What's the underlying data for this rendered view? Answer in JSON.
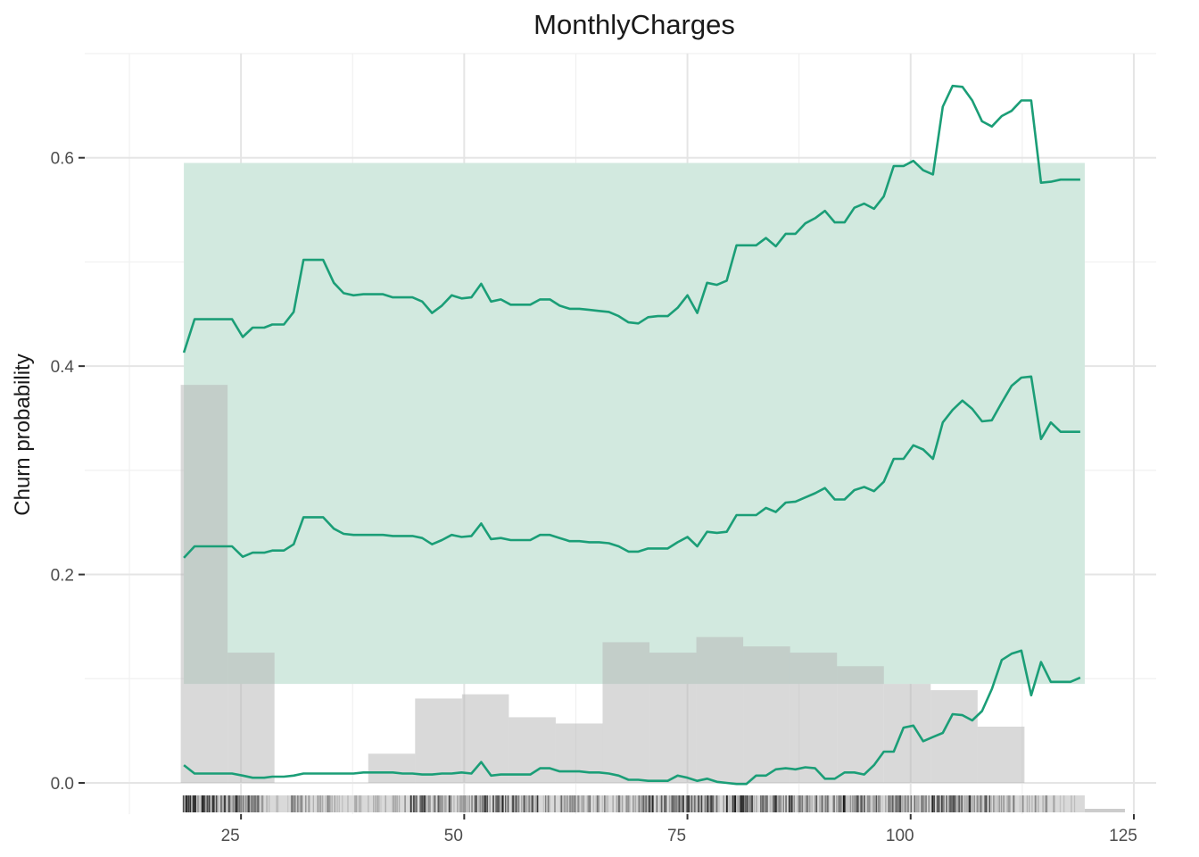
{
  "chart_data": {
    "type": "line",
    "title": "MonthlyCharges",
    "xlabel": "",
    "ylabel": "Churn probability",
    "xlim": [
      7.5,
      127.5
    ],
    "ylim": [
      -0.03,
      0.7
    ],
    "x_ticks": [
      25,
      50,
      75,
      100,
      125
    ],
    "x_tick_labels": [
      "25",
      "50",
      "75",
      "100",
      "125"
    ],
    "y_ticks": [
      0.0,
      0.2,
      0.4,
      0.6
    ],
    "y_tick_labels": [
      "0.0",
      "0.2",
      "0.4",
      "0.6"
    ],
    "grid": true,
    "colors": {
      "line": "#1b9e77",
      "band": "#d2e9df",
      "histogram": "#b3b3b3",
      "rug": "#000000",
      "grid_major": "#e5e5e5",
      "grid_minor": "#f0f0f0"
    },
    "series": [
      {
        "x": [
          18.6,
          19.8,
          22.5,
          24.0,
          25.2,
          26.3,
          27.6,
          28.5,
          29.8,
          30.9,
          32.0,
          33.1,
          34.2,
          35.4,
          36.5,
          37.6,
          38.7,
          39.8,
          40.9,
          42.0,
          43.1,
          44.2,
          45.3,
          46.4,
          47.5,
          48.6,
          49.7,
          50.8,
          51.9,
          53.0,
          54.1,
          55.2,
          56.3,
          57.4,
          58.5,
          59.6,
          60.7,
          61.8,
          62.9,
          64.0,
          65.1,
          66.2,
          67.3,
          68.4,
          69.5,
          70.6,
          71.7,
          72.8,
          73.9,
          75.0,
          76.1,
          77.2,
          78.3,
          79.4,
          80.5,
          81.6,
          82.7,
          83.8,
          84.9,
          86.0,
          87.1,
          88.2,
          89.3,
          90.4,
          91.5,
          92.6,
          93.7,
          94.8,
          95.9,
          97.0,
          98.1,
          99.2,
          100.3,
          101.4,
          102.5,
          103.6,
          104.7,
          105.8,
          106.9,
          108.0,
          109.1,
          110.2,
          111.3,
          112.4,
          113.5,
          114.6,
          115.7,
          116.8,
          117.9,
          119.0
        ],
        "y": [
          0.413,
          0.445,
          0.445,
          0.445,
          0.428,
          0.437,
          0.437,
          0.44,
          0.44,
          0.452,
          0.502,
          0.502,
          0.502,
          0.48,
          0.47,
          0.468,
          0.469,
          0.469,
          0.469,
          0.466,
          0.466,
          0.466,
          0.462,
          0.451,
          0.458,
          0.468,
          0.465,
          0.466,
          0.479,
          0.462,
          0.464,
          0.459,
          0.459,
          0.459,
          0.464,
          0.464,
          0.458,
          0.455,
          0.455,
          0.454,
          0.453,
          0.452,
          0.448,
          0.442,
          0.441,
          0.447,
          0.448,
          0.448,
          0.456,
          0.468,
          0.451,
          0.48,
          0.478,
          0.482,
          0.516,
          0.516,
          0.516,
          0.523,
          0.515,
          0.527,
          0.527,
          0.537,
          0.542,
          0.549,
          0.538,
          0.538,
          0.552,
          0.556,
          0.551,
          0.563,
          0.592,
          0.592,
          0.597,
          0.588,
          0.584,
          0.649,
          0.669,
          0.668,
          0.655,
          0.635,
          0.63,
          0.64,
          0.645,
          0.655,
          0.655,
          0.576,
          0.577,
          0.579,
          0.579,
          0.579
        ]
      },
      {
        "x": [
          18.6,
          19.8,
          22.5,
          24.0,
          25.2,
          26.3,
          27.6,
          28.5,
          29.8,
          30.9,
          32.0,
          33.1,
          34.2,
          35.4,
          36.5,
          37.6,
          38.7,
          39.8,
          40.9,
          42.0,
          43.1,
          44.2,
          45.3,
          46.4,
          47.5,
          48.6,
          49.7,
          50.8,
          51.9,
          53.0,
          54.1,
          55.2,
          56.3,
          57.4,
          58.5,
          59.6,
          60.7,
          61.8,
          62.9,
          64.0,
          65.1,
          66.2,
          67.3,
          68.4,
          69.5,
          70.6,
          71.7,
          72.8,
          73.9,
          75.0,
          76.1,
          77.2,
          78.3,
          79.4,
          80.5,
          81.6,
          82.7,
          83.8,
          84.9,
          86.0,
          87.1,
          88.2,
          89.3,
          90.4,
          91.5,
          92.6,
          93.7,
          94.8,
          95.9,
          97.0,
          98.1,
          99.2,
          100.3,
          101.4,
          102.5,
          103.6,
          104.7,
          105.8,
          106.9,
          108.0,
          109.1,
          110.2,
          111.3,
          112.4,
          113.5,
          114.6,
          115.7,
          116.8,
          117.9,
          119.0
        ],
        "y": [
          0.216,
          0.227,
          0.227,
          0.227,
          0.217,
          0.221,
          0.221,
          0.223,
          0.223,
          0.229,
          0.255,
          0.255,
          0.255,
          0.244,
          0.239,
          0.238,
          0.238,
          0.238,
          0.238,
          0.237,
          0.237,
          0.237,
          0.235,
          0.229,
          0.233,
          0.238,
          0.236,
          0.237,
          0.249,
          0.234,
          0.235,
          0.233,
          0.233,
          0.233,
          0.238,
          0.238,
          0.235,
          0.232,
          0.232,
          0.231,
          0.231,
          0.23,
          0.227,
          0.222,
          0.222,
          0.225,
          0.225,
          0.225,
          0.231,
          0.236,
          0.227,
          0.241,
          0.24,
          0.241,
          0.257,
          0.257,
          0.257,
          0.264,
          0.26,
          0.269,
          0.27,
          0.274,
          0.278,
          0.283,
          0.272,
          0.272,
          0.281,
          0.284,
          0.28,
          0.289,
          0.311,
          0.311,
          0.324,
          0.32,
          0.311,
          0.346,
          0.358,
          0.367,
          0.359,
          0.347,
          0.348,
          0.365,
          0.381,
          0.389,
          0.39,
          0.33,
          0.346,
          0.337,
          0.337,
          0.337
        ]
      },
      {
        "x": [
          18.6,
          19.8,
          22.5,
          24.0,
          25.2,
          26.3,
          27.6,
          28.5,
          29.8,
          30.9,
          32.0,
          33.1,
          34.2,
          35.4,
          36.5,
          37.6,
          38.7,
          39.8,
          40.9,
          42.0,
          43.1,
          44.2,
          45.3,
          46.4,
          47.5,
          48.6,
          49.7,
          50.8,
          51.9,
          53.0,
          54.1,
          55.2,
          56.3,
          57.4,
          58.5,
          59.6,
          60.7,
          61.8,
          62.9,
          64.0,
          65.1,
          66.2,
          67.3,
          68.4,
          69.5,
          70.6,
          71.7,
          72.8,
          73.9,
          75.0,
          76.1,
          77.2,
          78.3,
          79.4,
          80.5,
          81.6,
          82.7,
          83.8,
          84.9,
          86.0,
          87.1,
          88.2,
          89.3,
          90.4,
          91.5,
          92.6,
          93.7,
          94.8,
          95.9,
          97.0,
          98.1,
          99.2,
          100.3,
          101.4,
          102.5,
          103.6,
          104.7,
          105.8,
          106.9,
          108.0,
          109.1,
          110.2,
          111.3,
          112.4,
          113.5,
          114.6,
          115.7,
          116.8,
          117.9,
          119.0
        ],
        "y": [
          0.017,
          0.009,
          0.009,
          0.009,
          0.007,
          0.005,
          0.005,
          0.006,
          0.006,
          0.007,
          0.009,
          0.009,
          0.009,
          0.009,
          0.009,
          0.009,
          0.01,
          0.01,
          0.01,
          0.01,
          0.009,
          0.009,
          0.008,
          0.008,
          0.009,
          0.009,
          0.01,
          0.009,
          0.02,
          0.007,
          0.008,
          0.008,
          0.008,
          0.008,
          0.014,
          0.014,
          0.011,
          0.011,
          0.011,
          0.01,
          0.01,
          0.009,
          0.007,
          0.003,
          0.003,
          0.002,
          0.002,
          0.002,
          0.007,
          0.005,
          0.002,
          0.004,
          0.001,
          0.0,
          -0.001,
          -0.001,
          0.007,
          0.007,
          0.013,
          0.014,
          0.013,
          0.015,
          0.014,
          0.004,
          0.004,
          0.01,
          0.01,
          0.008,
          0.017,
          0.03,
          0.03,
          0.053,
          0.055,
          0.04,
          0.044,
          0.048,
          0.066,
          0.065,
          0.06,
          0.069,
          0.09,
          0.118,
          0.124,
          0.127,
          0.084,
          0.116,
          0.097,
          0.097,
          0.097,
          0.101
        ]
      }
    ],
    "band_x": [
      18.6,
      119.5
    ],
    "band_y": [
      0.095,
      0.595
    ],
    "histogram": {
      "bin_edges": [
        18.25,
        23.5,
        28.75,
        34.0,
        39.25,
        44.5,
        49.75,
        55.0,
        60.25,
        65.5,
        70.75,
        76.0,
        81.25,
        86.5,
        91.75,
        97.0,
        102.25,
        107.5,
        112.75,
        118.0,
        123.25
      ],
      "densities": [
        0.382,
        0.125,
        0.0,
        0.0,
        0.028,
        0.081,
        0.085,
        0.063,
        0.057,
        0.135,
        0.125,
        0.14,
        0.131,
        0.125,
        0.112,
        0.095,
        0.089,
        0.054,
        0.0,
        0.0
      ]
    },
    "rug": {
      "segments": [
        [
          18.5,
          23.5,
          1.0
        ],
        [
          23.5,
          25.5,
          0.75
        ],
        [
          25.5,
          27.0,
          0.85
        ],
        [
          27.0,
          28.0,
          0.45
        ],
        [
          28.0,
          30.5,
          0.15
        ],
        [
          30.5,
          32.0,
          0.6
        ],
        [
          32.0,
          34.0,
          0.35
        ],
        [
          34.0,
          36.0,
          0.4
        ],
        [
          36.0,
          40.0,
          0.25
        ],
        [
          40.0,
          44.0,
          0.3
        ],
        [
          44.0,
          47.5,
          0.8
        ],
        [
          47.5,
          51.0,
          0.55
        ],
        [
          51.0,
          55.0,
          0.8
        ],
        [
          55.0,
          59.0,
          0.65
        ],
        [
          59.0,
          63.0,
          0.55
        ],
        [
          63.0,
          67.0,
          0.4
        ],
        [
          67.0,
          70.0,
          0.5
        ],
        [
          70.0,
          74.5,
          0.75
        ],
        [
          74.5,
          78.0,
          0.9
        ],
        [
          78.0,
          81.0,
          0.8
        ],
        [
          81.0,
          85.0,
          0.85
        ],
        [
          85.0,
          89.0,
          0.75
        ],
        [
          89.0,
          92.0,
          0.6
        ],
        [
          92.0,
          96.0,
          0.8
        ],
        [
          96.0,
          99.0,
          0.7
        ],
        [
          99.0,
          102.0,
          0.6
        ],
        [
          102.0,
          106.0,
          0.8
        ],
        [
          106.0,
          109.0,
          0.7
        ],
        [
          109.0,
          112.0,
          0.45
        ],
        [
          112.0,
          116.0,
          0.3
        ],
        [
          116.0,
          118.5,
          0.2
        ]
      ],
      "light_strip": [
        18.5,
        119.5
      ],
      "grey_base": [
        119.5,
        124.0
      ]
    }
  }
}
